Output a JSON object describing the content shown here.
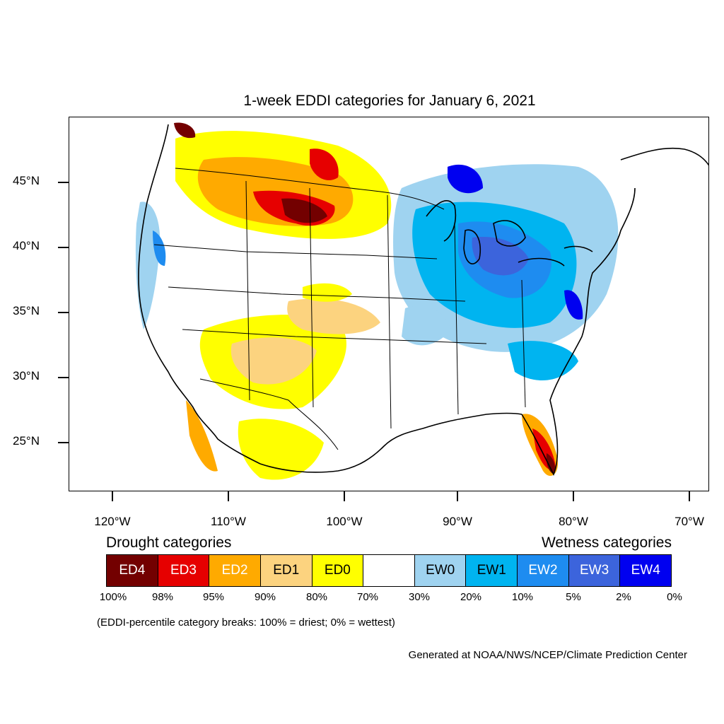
{
  "title": "1-week EDDI categories for January 6, 2021",
  "lat_labels": [
    "45°N",
    "40°N",
    "35°N",
    "30°N",
    "25°N"
  ],
  "lon_labels": [
    "120°W",
    "110°W",
    "100°W",
    "90°W",
    "80°W",
    "70°W"
  ],
  "legend": {
    "drought_heading": "Drought categories",
    "wetness_heading": "Wetness categories",
    "categories": [
      {
        "label": "ED4",
        "color": "#730000",
        "text_color": "#ffffff"
      },
      {
        "label": "ED3",
        "color": "#e60000",
        "text_color": "#ffffff"
      },
      {
        "label": "ED2",
        "color": "#ffaa00",
        "text_color": "#ffffff"
      },
      {
        "label": "ED1",
        "color": "#fcd37f",
        "text_color": "#000000"
      },
      {
        "label": "ED0",
        "color": "#ffff00",
        "text_color": "#000000"
      },
      {
        "label": "",
        "color": "#ffffff",
        "text_color": "#000000"
      },
      {
        "label": "EW0",
        "color": "#9fd3f0",
        "text_color": "#000000"
      },
      {
        "label": "EW1",
        "color": "#00b4f0",
        "text_color": "#000000"
      },
      {
        "label": "EW2",
        "color": "#1e8cf0",
        "text_color": "#ffffff"
      },
      {
        "label": "EW3",
        "color": "#3c64dc",
        "text_color": "#ffffff"
      },
      {
        "label": "EW4",
        "color": "#0000f0",
        "text_color": "#ffffff"
      }
    ],
    "percentiles": [
      "100%",
      "98%",
      "95%",
      "90%",
      "80%",
      "70%",
      "30%",
      "20%",
      "10%",
      "5%",
      "2%",
      "0%"
    ]
  },
  "note": "(EDDI-percentile category breaks: 100% = driest; 0% = wettest)",
  "credit": "Generated at NOAA/NWS/NCEP/Climate Prediction Center"
}
